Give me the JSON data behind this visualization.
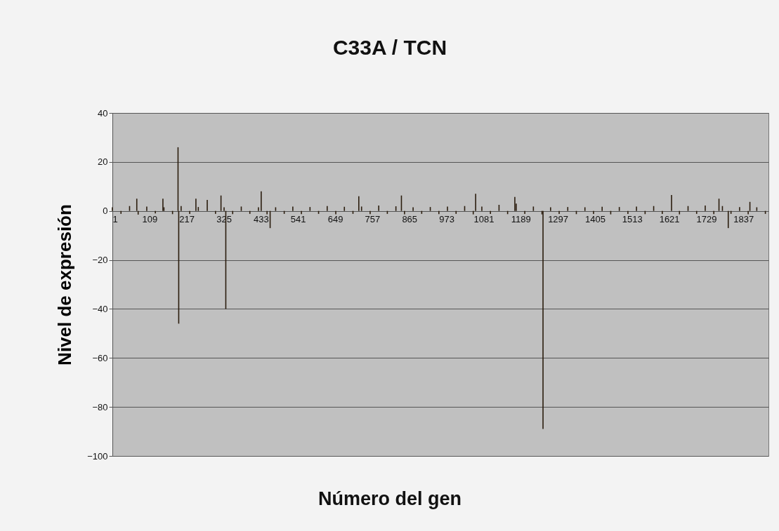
{
  "chart_data": {
    "type": "bar",
    "title": "C33A / TCN",
    "xlabel": "Número del gen",
    "ylabel": "Nivel de expresión",
    "x": [
      1,
      26,
      51,
      72,
      76,
      101,
      126,
      148,
      151,
      176,
      192,
      194,
      201,
      226,
      244,
      251,
      277,
      301,
      317,
      326,
      331,
      351,
      376,
      401,
      426,
      434,
      451,
      460,
      476,
      501,
      526,
      551,
      576,
      601,
      626,
      651,
      676,
      701,
      718,
      726,
      751,
      776,
      801,
      826,
      842,
      851,
      876,
      901,
      926,
      951,
      976,
      1001,
      1026,
      1051,
      1058,
      1076,
      1101,
      1126,
      1151,
      1172,
      1176,
      1201,
      1226,
      1251,
      1254,
      1276,
      1301,
      1326,
      1351,
      1376,
      1401,
      1426,
      1451,
      1476,
      1501,
      1526,
      1551,
      1576,
      1601,
      1628,
      1651,
      1676,
      1701,
      1726,
      1751,
      1766,
      1776,
      1793,
      1801,
      1826,
      1851,
      1856,
      1876,
      1901
    ],
    "values": [
      1.5,
      -1.2,
      2,
      5,
      -1.5,
      1.8,
      -1,
      5,
      1.5,
      -1.3,
      26,
      -46,
      2,
      -1.2,
      5,
      1.6,
      4.5,
      -1.2,
      6.3,
      1.5,
      -40,
      -1.3,
      1.8,
      -1.2,
      1.5,
      8,
      -1.4,
      -7,
      1.5,
      -1.2,
      1.8,
      -1.3,
      1.6,
      -1.2,
      2,
      -1.4,
      1.7,
      -1.2,
      6,
      1.8,
      -1.3,
      2.2,
      -1.2,
      1.9,
      6.3,
      -1.4,
      1.5,
      -1.2,
      1.6,
      -1.3,
      1.8,
      -1.2,
      2,
      -1.4,
      7,
      1.8,
      -1.2,
      2.5,
      -1.3,
      5.7,
      3,
      -1.2,
      1.8,
      -1.4,
      -89,
      1.5,
      -1.2,
      1.6,
      -1.3,
      1.5,
      -1.2,
      1.7,
      -1.4,
      1.6,
      -1.2,
      1.8,
      -1.3,
      2,
      -1.2,
      6.5,
      -1.4,
      2,
      -1.2,
      2.2,
      -1.3,
      5,
      2,
      -7,
      -1.2,
      1.6,
      -1.4,
      3.7,
      1.5,
      -1.2
    ],
    "color": "#2b1d0e",
    "xlim": [
      1,
      1910
    ],
    "xticks": [
      1,
      109,
      217,
      325,
      433,
      541,
      649,
      757,
      865,
      973,
      1081,
      1189,
      1297,
      1405,
      1513,
      1621,
      1729,
      1837
    ],
    "ylim": [
      -100,
      40
    ],
    "yticks": [
      -100,
      -80,
      -60,
      -40,
      -20,
      0,
      20,
      40
    ],
    "grid": "y"
  }
}
